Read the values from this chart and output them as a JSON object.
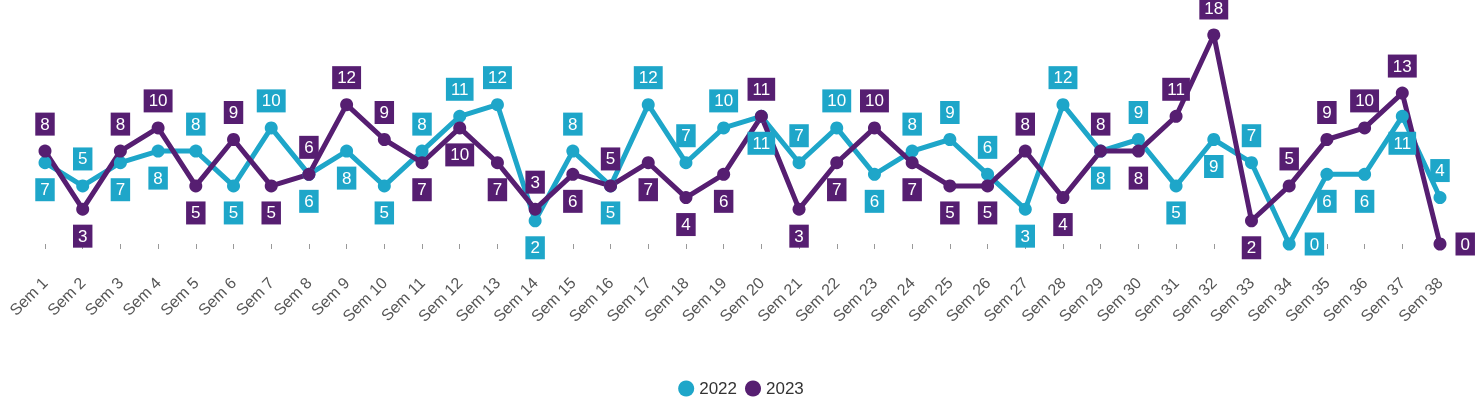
{
  "chart_data": {
    "type": "line",
    "categories": [
      "Sem 1",
      "Sem 2",
      "Sem 3",
      "Sem 4",
      "Sem 5",
      "Sem 6",
      "Sem 7",
      "Sem 8",
      "Sem 9",
      "Sem 10",
      "Sem 11",
      "Sem 12",
      "Sem 13",
      "Sem 14",
      "Sem 15",
      "Sem 16",
      "Sem 17",
      "Sem 18",
      "Sem 19",
      "Sem 20",
      "Sem 21",
      "Sem 22",
      "Sem 23",
      "Sem 24",
      "Sem 25",
      "Sem 26",
      "Sem 27",
      "Sem 28",
      "Sem 29",
      "Sem 30",
      "Sem 31",
      "Sem 32",
      "Sem 33",
      "Sem 34",
      "Sem 35",
      "Sem 36",
      "Sem 37",
      "Sem 38"
    ],
    "series": [
      {
        "name": "2022",
        "color": "#1ea6c9",
        "values": [
          7,
          5,
          7,
          8,
          8,
          5,
          10,
          6,
          8,
          5,
          8,
          11,
          12,
          2,
          8,
          5,
          12,
          7,
          10,
          11,
          7,
          10,
          6,
          8,
          9,
          6,
          3,
          12,
          8,
          9,
          5,
          9,
          7,
          0,
          6,
          6,
          11,
          4
        ]
      },
      {
        "name": "2023",
        "color": "#561e71",
        "values": [
          8,
          3,
          8,
          10,
          5,
          9,
          5,
          6,
          12,
          9,
          7,
          10,
          7,
          3,
          6,
          5,
          7,
          4,
          6,
          11,
          3,
          7,
          10,
          7,
          5,
          5,
          8,
          4,
          8,
          8,
          11,
          18,
          2,
          5,
          9,
          10,
          13,
          0
        ]
      }
    ],
    "data_labels": true,
    "legend": "bottom",
    "marker": "circle",
    "line_style": "solid",
    "grid": false
  }
}
